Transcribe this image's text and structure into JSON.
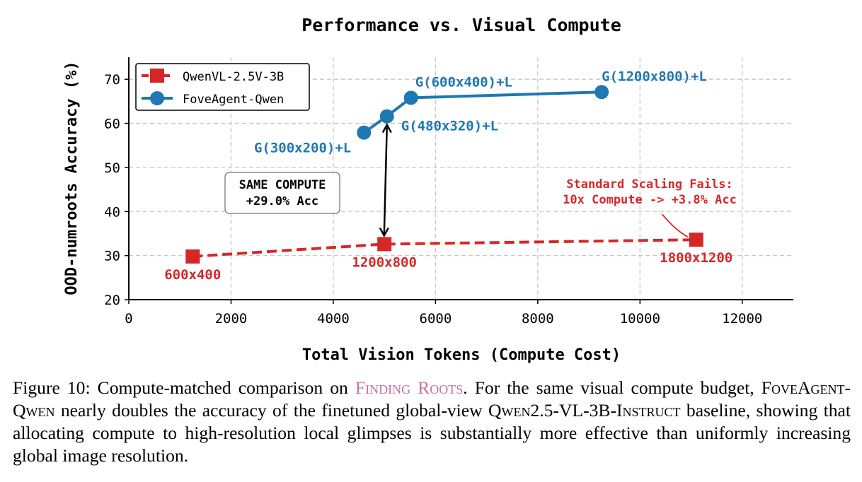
{
  "chart_data": {
    "type": "line",
    "title": "Performance vs. Visual Compute",
    "xlabel": "Total Vision Tokens (Compute Cost)",
    "ylabel": "OOD-numroots Accuracy (%)",
    "xlim": [
      0,
      13000
    ],
    "ylim": [
      20,
      75
    ],
    "xticks": [
      0,
      2000,
      4000,
      6000,
      8000,
      10000,
      12000
    ],
    "yticks": [
      20,
      30,
      40,
      50,
      60,
      70
    ],
    "grid": true,
    "legend_position": "top-left",
    "series": [
      {
        "name": "QwenVL-2.5V-3B",
        "color": "#d62728",
        "marker": "square",
        "linestyle": "dashed",
        "points": [
          {
            "x": 1250,
            "y": 29.8,
            "label": "600x400"
          },
          {
            "x": 5000,
            "y": 32.6,
            "label": "1200x800"
          },
          {
            "x": 11100,
            "y": 33.6,
            "label": "1800x1200"
          }
        ]
      },
      {
        "name": "FoveAgent-Qwen",
        "color": "#1f77b4",
        "marker": "circle",
        "linestyle": "solid",
        "points": [
          {
            "x": 4600,
            "y": 57.9,
            "label": "G(300x200)+L"
          },
          {
            "x": 5050,
            "y": 61.6,
            "label": "G(480x320)+L"
          },
          {
            "x": 5520,
            "y": 65.8,
            "label": "G(600x400)+L"
          },
          {
            "x": 9250,
            "y": 67.1,
            "label": "G(1200x800)+L"
          }
        ]
      }
    ],
    "annotations": {
      "same_compute_line1": "SAME COMPUTE",
      "same_compute_line2": "+29.0% Acc",
      "scaling_line1": "Standard Scaling Fails:",
      "scaling_line2": "10x Compute -> +3.8% Acc"
    }
  },
  "caption": {
    "figure_label": "Figure 10:",
    "part1": "Compute-matched comparison on",
    "dataset": "Finding Roots",
    "part2": ". For the same visual compute budget,",
    "model": "FoveAgent-Qwen",
    "part3": "nearly doubles the accuracy of the finetuned global-view",
    "baseline_a": "Qwen",
    "baseline_b": "2.5-VL-3B-",
    "baseline_c": "Instruct",
    "part4": "baseline, showing that allocating compute to high-resolution local glimpses is substantially more effective than uniformly increasing global image resolution."
  }
}
